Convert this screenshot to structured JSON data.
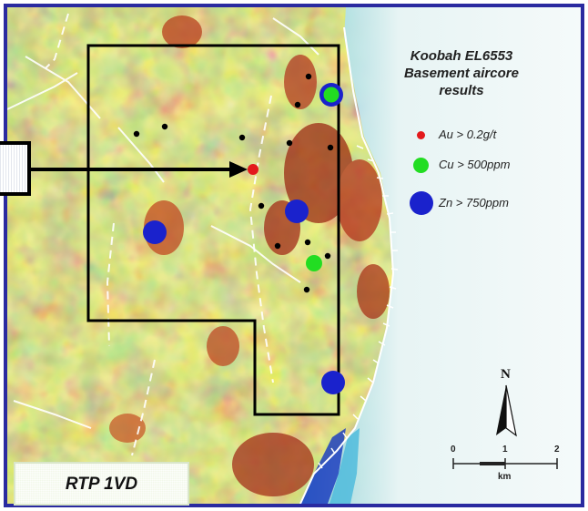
{
  "title": {
    "line1": "Koobah EL6553",
    "line2": "Basement aircore",
    "line3": "results"
  },
  "legend": [
    {
      "label": "Au > 0.2g/t",
      "color": "#e31a1c"
    },
    {
      "label": "Cu > 500ppm",
      "color": "#22dd22"
    },
    {
      "label": "Zn > 750ppm",
      "color": "#1a22cc"
    }
  ],
  "map_label": "RTP 1VD",
  "north_label": "N",
  "scale_bar": {
    "ticks": [
      "0",
      "1",
      "2"
    ],
    "unit": "km"
  },
  "colors": {
    "frame": "#2a2aa0",
    "tenement_outline": "#000000",
    "au": "#e31a1c",
    "cu": "#22dd22",
    "zn": "#1a22cc",
    "drillhole": "#000000"
  }
}
